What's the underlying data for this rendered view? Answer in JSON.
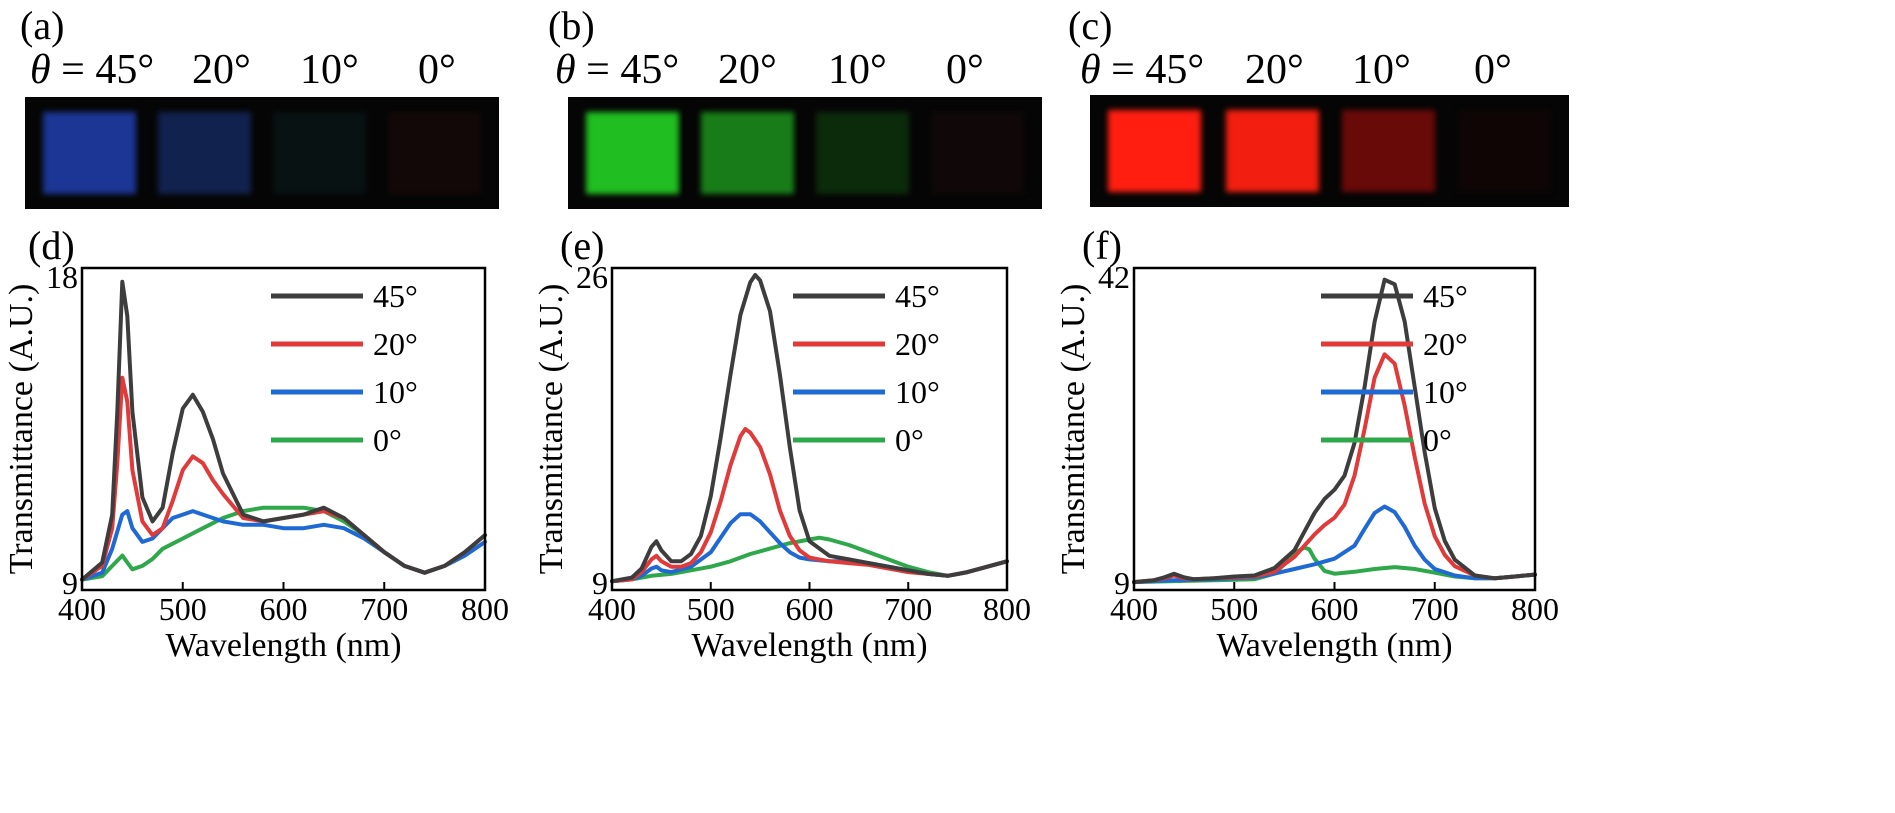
{
  "panel_labels": [
    "(a)",
    "(b)",
    "(c)",
    "(d)",
    "(e)",
    "(f)"
  ],
  "photo_panels": [
    {
      "id": "a",
      "angle_labels": [
        {
          "prefix": "θ",
          "text": " = 45°"
        },
        {
          "prefix": "",
          "text": "20°"
        },
        {
          "prefix": "",
          "text": "10°"
        },
        {
          "prefix": "",
          "text": "0°"
        }
      ],
      "squares": [
        {
          "color": "#1f3fae",
          "opacity": 0.85
        },
        {
          "color": "#1c3a8c",
          "opacity": 0.55
        },
        {
          "color": "#0f2a2a",
          "opacity": 0.35
        },
        {
          "color": "#3a1410",
          "opacity": 0.25
        }
      ]
    },
    {
      "id": "b",
      "angle_labels": [
        {
          "prefix": "θ",
          "text": " = 45°"
        },
        {
          "prefix": "",
          "text": "20°"
        },
        {
          "prefix": "",
          "text": "10°"
        },
        {
          "prefix": "",
          "text": "0°"
        }
      ],
      "squares": [
        {
          "color": "#22c822",
          "opacity": 0.95
        },
        {
          "color": "#1fa61f",
          "opacity": 0.75
        },
        {
          "color": "#145a14",
          "opacity": 0.45
        },
        {
          "color": "#2a1010",
          "opacity": 0.3
        }
      ]
    },
    {
      "id": "c",
      "angle_labels": [
        {
          "prefix": "θ",
          "text": " = 45°"
        },
        {
          "prefix": "",
          "text": "20°"
        },
        {
          "prefix": "",
          "text": "10°"
        },
        {
          "prefix": "",
          "text": "0°"
        }
      ],
      "squares": [
        {
          "color": "#ff1e10",
          "opacity": 1.0
        },
        {
          "color": "#ff2010",
          "opacity": 0.95
        },
        {
          "color": "#8a0c0a",
          "opacity": 0.75
        },
        {
          "color": "#1e0606",
          "opacity": 0.4
        }
      ]
    }
  ],
  "chart_data": [
    {
      "type": "line",
      "panel": "(d)",
      "xlabel": "Wavelength (nm)",
      "ylabel": "Transmittance (A.U.)",
      "xlim": [
        400,
        800
      ],
      "ylim": [
        9,
        18
      ],
      "xticks": [
        400,
        500,
        600,
        700,
        800
      ],
      "ytick_labels": [
        "9",
        "18"
      ],
      "legend": [
        "45°",
        "20°",
        "10°",
        "0°"
      ],
      "series": [
        {
          "name": "45°",
          "color": "#3d3d3d",
          "x": [
            400,
            420,
            430,
            435,
            440,
            445,
            450,
            460,
            470,
            480,
            490,
            500,
            510,
            520,
            530,
            540,
            560,
            580,
            600,
            620,
            640,
            660,
            680,
            700,
            720,
            740,
            760,
            780,
            800
          ],
          "y": [
            9.1,
            9.6,
            11,
            14,
            17.8,
            16.8,
            14,
            11.5,
            10.8,
            11.2,
            12.8,
            14.1,
            14.5,
            14,
            13.2,
            12.2,
            11,
            10.8,
            10.9,
            11,
            11.2,
            10.9,
            10.4,
            9.9,
            9.5,
            9.3,
            9.5,
            9.9,
            10.4
          ]
        },
        {
          "name": "20°",
          "color": "#e03a3a",
          "x": [
            400,
            420,
            430,
            435,
            440,
            445,
            450,
            460,
            470,
            480,
            490,
            500,
            510,
            520,
            530,
            540,
            560,
            580,
            600,
            620,
            640,
            660,
            680,
            700,
            720,
            740,
            760,
            780,
            800
          ],
          "y": [
            9.1,
            9.5,
            10.6,
            12.5,
            15,
            14.3,
            12.3,
            10.8,
            10.4,
            10.6,
            11.4,
            12.3,
            12.7,
            12.5,
            12,
            11.6,
            10.9,
            10.8,
            10.9,
            11,
            11.1,
            10.9,
            10.4,
            9.9,
            9.5,
            9.3,
            9.5,
            9.9,
            10.4
          ]
        },
        {
          "name": "10°",
          "color": "#1f69d4",
          "x": [
            400,
            420,
            430,
            440,
            445,
            450,
            460,
            470,
            480,
            490,
            500,
            510,
            520,
            530,
            540,
            560,
            580,
            600,
            620,
            640,
            660,
            680,
            700,
            720,
            740,
            760,
            780,
            800
          ],
          "y": [
            9.1,
            9.3,
            10,
            11,
            11.1,
            10.6,
            10.2,
            10.3,
            10.6,
            10.9,
            11,
            11.1,
            11,
            10.9,
            10.8,
            10.7,
            10.7,
            10.6,
            10.6,
            10.7,
            10.6,
            10.3,
            9.9,
            9.5,
            9.3,
            9.5,
            9.8,
            10.2
          ]
        },
        {
          "name": "0°",
          "color": "#2ea84a",
          "x": [
            400,
            420,
            430,
            440,
            445,
            450,
            460,
            470,
            480,
            500,
            520,
            540,
            560,
            580,
            600,
            620,
            640,
            660,
            680,
            700,
            720,
            740,
            760,
            780,
            800
          ],
          "y": [
            9.1,
            9.2,
            9.5,
            9.8,
            9.6,
            9.4,
            9.5,
            9.7,
            10,
            10.3,
            10.6,
            10.9,
            11.1,
            11.2,
            11.2,
            11.2,
            11.1,
            10.8,
            10.4,
            9.9,
            9.5,
            9.3,
            9.5,
            9.8,
            10.2
          ]
        }
      ]
    },
    {
      "type": "line",
      "panel": "(e)",
      "xlabel": "Wavelength (nm)",
      "ylabel": "Transmittance (A.U.)",
      "xlim": [
        400,
        800
      ],
      "ylim": [
        9,
        26
      ],
      "xticks": [
        400,
        500,
        600,
        700,
        800
      ],
      "ytick_labels": [
        "9",
        "26"
      ],
      "legend": [
        "45°",
        "20°",
        "10°",
        "0°"
      ],
      "series": [
        {
          "name": "45°",
          "color": "#3d3d3d",
          "x": [
            400,
            420,
            430,
            440,
            445,
            450,
            460,
            470,
            480,
            490,
            500,
            510,
            520,
            530,
            540,
            545,
            550,
            560,
            570,
            580,
            590,
            600,
            620,
            640,
            660,
            680,
            700,
            720,
            740,
            760,
            780,
            800
          ],
          "y": [
            9.1,
            9.3,
            9.8,
            11,
            11.3,
            10.8,
            10.2,
            10.2,
            10.6,
            11.6,
            13.8,
            17,
            20.5,
            23.8,
            25.6,
            26,
            25.7,
            24,
            20.5,
            16.5,
            13,
            11.3,
            10.5,
            10.3,
            10.1,
            9.9,
            9.7,
            9.5,
            9.4,
            9.6,
            9.9,
            10.2
          ]
        },
        {
          "name": "20°",
          "color": "#e03a3a",
          "x": [
            400,
            420,
            430,
            440,
            445,
            450,
            460,
            470,
            480,
            490,
            500,
            510,
            520,
            530,
            535,
            540,
            550,
            560,
            570,
            580,
            590,
            600,
            620,
            640,
            660,
            680,
            700,
            720,
            740,
            760,
            780,
            800
          ],
          "y": [
            9.1,
            9.2,
            9.6,
            10.3,
            10.5,
            10.2,
            9.9,
            9.9,
            10.1,
            10.7,
            11.8,
            13.5,
            15.5,
            17.1,
            17.5,
            17.3,
            16.5,
            15,
            13,
            11.6,
            10.8,
            10.4,
            10.2,
            10.1,
            10,
            9.8,
            9.6,
            9.5,
            9.4,
            9.6,
            9.9,
            10.2
          ]
        },
        {
          "name": "10°",
          "color": "#1f69d4",
          "x": [
            400,
            420,
            430,
            440,
            445,
            450,
            460,
            480,
            500,
            510,
            520,
            530,
            540,
            550,
            560,
            570,
            580,
            590,
            600,
            620,
            640,
            660,
            680,
            700,
            720,
            740,
            760,
            780,
            800
          ],
          "y": [
            9.1,
            9.2,
            9.4,
            9.8,
            9.9,
            9.7,
            9.6,
            9.9,
            10.7,
            11.5,
            12.3,
            12.8,
            12.8,
            12.4,
            11.8,
            11.2,
            10.7,
            10.4,
            10.3,
            10.2,
            10.2,
            10.1,
            9.9,
            9.7,
            9.5,
            9.4,
            9.6,
            9.9,
            10.2
          ]
        },
        {
          "name": "0°",
          "color": "#2ea84a",
          "x": [
            400,
            420,
            440,
            460,
            480,
            500,
            520,
            540,
            560,
            580,
            600,
            610,
            620,
            640,
            660,
            680,
            700,
            720,
            740,
            760,
            780,
            800
          ],
          "y": [
            9.1,
            9.2,
            9.4,
            9.5,
            9.7,
            9.9,
            10.2,
            10.6,
            10.9,
            11.2,
            11.4,
            11.5,
            11.4,
            11.1,
            10.7,
            10.3,
            9.9,
            9.6,
            9.4,
            9.6,
            9.9,
            10.2
          ]
        }
      ]
    },
    {
      "type": "line",
      "panel": "(f)",
      "xlabel": "Wavelength (nm)",
      "ylabel": "Transmittance (A.U.)",
      "xlim": [
        400,
        800
      ],
      "ylim": [
        9,
        42
      ],
      "xticks": [
        400,
        500,
        600,
        700,
        800
      ],
      "ytick_labels": [
        "9",
        "42"
      ],
      "legend": [
        "45°",
        "20°",
        "10°",
        "0°"
      ],
      "series": [
        {
          "name": "45°",
          "color": "#3d3d3d",
          "x": [
            400,
            420,
            430,
            440,
            450,
            460,
            480,
            500,
            520,
            540,
            560,
            570,
            580,
            590,
            600,
            610,
            620,
            630,
            640,
            650,
            660,
            670,
            680,
            690,
            700,
            710,
            720,
            740,
            760,
            780,
            800
          ],
          "y": [
            9.1,
            9.3,
            9.6,
            10,
            9.6,
            9.4,
            9.5,
            9.7,
            9.8,
            10.6,
            12.5,
            14.5,
            16.5,
            18,
            19,
            20.5,
            24,
            30,
            37,
            41.5,
            41,
            37,
            30,
            23,
            17,
            13.5,
            11.5,
            9.8,
            9.5,
            9.7,
            9.9
          ]
        },
        {
          "name": "20°",
          "color": "#e03a3a",
          "x": [
            400,
            420,
            430,
            440,
            450,
            460,
            480,
            500,
            520,
            540,
            560,
            570,
            580,
            590,
            600,
            610,
            620,
            630,
            640,
            650,
            660,
            670,
            680,
            690,
            700,
            710,
            720,
            740,
            760,
            780,
            800
          ],
          "y": [
            9.1,
            9.3,
            9.5,
            9.8,
            9.5,
            9.4,
            9.5,
            9.6,
            9.7,
            10.2,
            11.8,
            13,
            14.2,
            15.2,
            16,
            17.4,
            20.5,
            25.5,
            31,
            33.5,
            32.5,
            28,
            22.5,
            17.5,
            14,
            12,
            10.8,
            9.8,
            9.5,
            9.7,
            9.9
          ]
        },
        {
          "name": "10°",
          "color": "#1f69d4",
          "x": [
            400,
            440,
            480,
            520,
            540,
            560,
            580,
            600,
            620,
            630,
            640,
            650,
            660,
            670,
            680,
            690,
            700,
            720,
            740,
            760,
            780,
            800
          ],
          "y": [
            9.1,
            9.3,
            9.4,
            9.6,
            10,
            10.5,
            11,
            11.6,
            13,
            14.8,
            16.5,
            17.2,
            16.6,
            15,
            13,
            11.5,
            10.5,
            9.8,
            9.5,
            9.5,
            9.7,
            9.9
          ]
        },
        {
          "name": "0°",
          "color": "#2ea84a",
          "x": [
            400,
            440,
            480,
            520,
            540,
            550,
            560,
            570,
            575,
            580,
            590,
            600,
            620,
            640,
            660,
            680,
            700,
            720,
            740,
            760,
            780,
            800
          ],
          "y": [
            9.1,
            9.2,
            9.3,
            9.4,
            10,
            11,
            12.2,
            12.8,
            12.6,
            11.6,
            10.3,
            10,
            10.2,
            10.5,
            10.7,
            10.5,
            10.1,
            9.7,
            9.5,
            9.5,
            9.7,
            9.9
          ]
        }
      ]
    }
  ]
}
